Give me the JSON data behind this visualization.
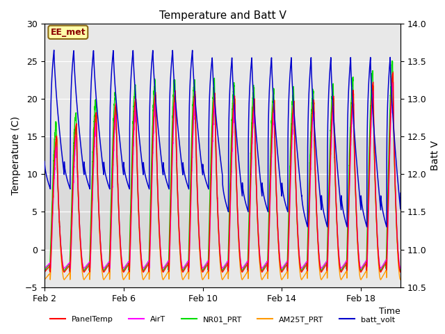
{
  "title": "Temperature and Batt V",
  "xlabel": "Time",
  "ylabel_left": "Temperature (C)",
  "ylabel_right": "Batt V",
  "annotation_text": "EE_met",
  "xlim_days": [
    2,
    20
  ],
  "ylim_left": [
    -5,
    30
  ],
  "ylim_right": [
    10.5,
    14.0
  ],
  "yticks_left": [
    -5,
    0,
    5,
    10,
    15,
    20,
    25,
    30
  ],
  "yticks_right": [
    10.5,
    11.0,
    11.5,
    12.0,
    12.5,
    13.0,
    13.5,
    14.0
  ],
  "xtick_labels": [
    "Feb 2",
    "Feb 6",
    "Feb 10",
    "Feb 14",
    "Feb 18"
  ],
  "xtick_positions": [
    2,
    6,
    10,
    14,
    18
  ],
  "gray_band_ymin": 0,
  "gray_band_ymax": 15,
  "colors": {
    "PanelTemp": "#ff0000",
    "AirT": "#ff00ff",
    "NR01_PRT": "#00dd00",
    "AM25T_PRT": "#ff9900",
    "batt_volt": "#0000cc"
  },
  "background_color": "#ffffff",
  "plot_bg_color": "#e8e8e8"
}
